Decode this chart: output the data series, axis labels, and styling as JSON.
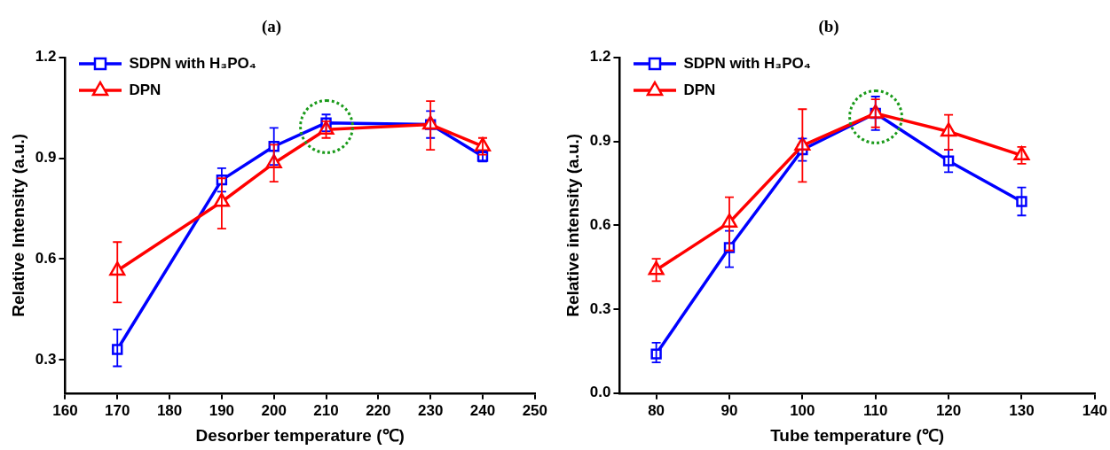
{
  "chart_data": [
    {
      "type": "line",
      "title": "(a)",
      "xlabel": "Desorber temperature (℃)",
      "ylabel": "Relative Intensity (a.u.)",
      "x": [
        170,
        190,
        200,
        210,
        230,
        240
      ],
      "xlim": [
        160,
        250
      ],
      "xticks": [
        160,
        170,
        180,
        190,
        200,
        210,
        220,
        230,
        240,
        250
      ],
      "ylim": [
        0.2,
        1.2
      ],
      "yticks": [
        0.3,
        0.6,
        0.9,
        1.2
      ],
      "grid": false,
      "legend": "top left",
      "series": [
        {
          "name": "SDPN with H₃PO₄",
          "color": "#0000ff",
          "marker": "square",
          "values": [
            0.33,
            0.835,
            0.935,
            1.005,
            1.0,
            0.905
          ],
          "errors": [
            [
              0.28,
              0.39
            ],
            [
              0.8,
              0.87
            ],
            [
              0.88,
              0.99
            ],
            [
              0.98,
              1.03
            ],
            [
              0.96,
              1.04
            ],
            [
              0.89,
              0.92
            ]
          ]
        },
        {
          "name": "DPN",
          "color": "#ff0000",
          "marker": "triangle",
          "values": [
            0.565,
            0.77,
            0.885,
            0.985,
            1.0,
            0.935
          ],
          "errors": [
            [
              0.47,
              0.65
            ],
            [
              0.69,
              0.84
            ],
            [
              0.83,
              0.94
            ],
            [
              0.96,
              1.01
            ],
            [
              0.925,
              1.07
            ],
            [
              0.91,
              0.96
            ]
          ]
        }
      ]
    },
    {
      "type": "line",
      "title": "(b)",
      "xlabel": "Tube temperature (℃)",
      "ylabel": "Relative intensity (a.u.)",
      "x": [
        80,
        90,
        100,
        110,
        120,
        130
      ],
      "xlim": [
        75,
        140
      ],
      "xticks": [
        80,
        90,
        100,
        110,
        120,
        130,
        140
      ],
      "ylim": [
        0,
        1.2
      ],
      "yticks": [
        {
          "value": 0,
          "label": "0.0"
        },
        0.3,
        0.6,
        0.9,
        1.2
      ],
      "grid": false,
      "legend": "top left",
      "series": [
        {
          "name": "SDPN with H₃PO₄",
          "color": "#0000ff",
          "marker": "square",
          "values": [
            0.14,
            0.52,
            0.87,
            1.0,
            0.83,
            0.685
          ],
          "errors": [
            [
              0.11,
              0.18
            ],
            [
              0.45,
              0.58
            ],
            [
              0.83,
              0.91
            ],
            [
              0.94,
              1.06
            ],
            [
              0.79,
              0.87
            ],
            [
              0.635,
              0.735
            ]
          ]
        },
        {
          "name": "DPN",
          "color": "#ff0000",
          "marker": "triangle",
          "values": [
            0.44,
            0.61,
            0.885,
            1.0,
            0.935,
            0.85
          ],
          "errors": [
            [
              0.4,
              0.48
            ],
            [
              0.51,
              0.7
            ],
            [
              0.755,
              1.015
            ],
            [
              0.95,
              1.05
            ],
            [
              0.87,
              0.995
            ],
            [
              0.82,
              0.88
            ]
          ]
        }
      ]
    }
  ]
}
